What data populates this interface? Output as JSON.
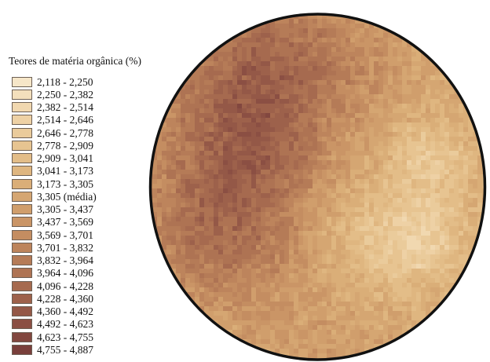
{
  "legend": {
    "title": "Teores de matéria orgânica (%)",
    "classes": [
      {
        "label": "2,118 - 2,250",
        "color": "#f6e6c8"
      },
      {
        "label": "2,250 - 2,382",
        "color": "#f3dfbc"
      },
      {
        "label": "2,382 - 2,514",
        "color": "#f1d8b0"
      },
      {
        "label": "2,514 - 2,646",
        "color": "#eed1a5"
      },
      {
        "label": "2,646 - 2,778",
        "color": "#eacb9b"
      },
      {
        "label": "2,778 - 2,909",
        "color": "#e7c491"
      },
      {
        "label": "2,909 - 3,041",
        "color": "#e3bd88"
      },
      {
        "label": "3,041 - 3,173",
        "color": "#dfb680"
      },
      {
        "label": "3,173 - 3,305",
        "color": "#daae78"
      },
      {
        "label": "3,305 (média)",
        "color": "#d5a672"
      },
      {
        "label": "3,305 - 3,437",
        "color": "#d09e6c"
      },
      {
        "label": "3,437 - 3,569",
        "color": "#ca9566"
      },
      {
        "label": "3,569 - 3,701",
        "color": "#c48d61"
      },
      {
        "label": "3,701 - 3,832",
        "color": "#bd845c"
      },
      {
        "label": "3,832 - 3,964",
        "color": "#b57b57"
      },
      {
        "label": "3,964 - 4,096",
        "color": "#ae7353"
      },
      {
        "label": "4,096 - 4,228",
        "color": "#a66a4f"
      },
      {
        "label": "4,228 - 4,360",
        "color": "#9d614b"
      },
      {
        "label": "4,360 - 4,492",
        "color": "#945847"
      },
      {
        "label": "4,492 - 4,623",
        "color": "#8b4f43"
      },
      {
        "label": "4,623 - 4,755",
        "color": "#82473f"
      },
      {
        "label": "4,755 - 4,887",
        "color": "#793f3b"
      }
    ]
  },
  "map": {
    "boundary_color": "#111111"
  }
}
